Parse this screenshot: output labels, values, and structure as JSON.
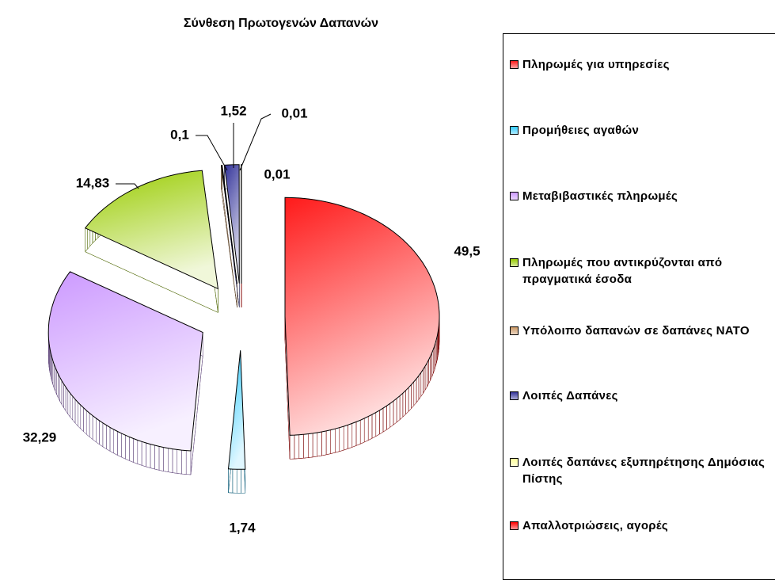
{
  "chart_data": {
    "type": "pie",
    "title": "Σύνθεση Πρωτογενών Δαπανών",
    "categories": [
      "Πληρωμές για υπηρεσίες",
      "Προμήθειες αγαθών",
      "Μεταβιβαστικές πληρωμές",
      "Πληρωμές που αντικρύζονται από πραγματικά έσοδα",
      "Υπόλοιπο δαπανών σε δαπάνες ΝΑΤΟ",
      "Λοιπές Δαπάνες",
      "Λοιπές δαπάνες εξυπηρέτησης Δημόσιας Πίστης",
      "Απαλλοτριώσεις, αγορές"
    ],
    "values": [
      49.5,
      1.74,
      32.29,
      14.83,
      0.1,
      1.52,
      0.01,
      0.01
    ],
    "value_labels": [
      "49,5",
      "1,74",
      "32,29",
      "14,83",
      "0,1",
      "1,52",
      "0,01",
      "0,01"
    ],
    "colors": [
      "#ff1a1a",
      "#33ccff",
      "#cc99ff",
      "#99cc00",
      "#cc9966",
      "#333399",
      "#ffff99",
      "#ff0000"
    ],
    "legend": "right"
  }
}
